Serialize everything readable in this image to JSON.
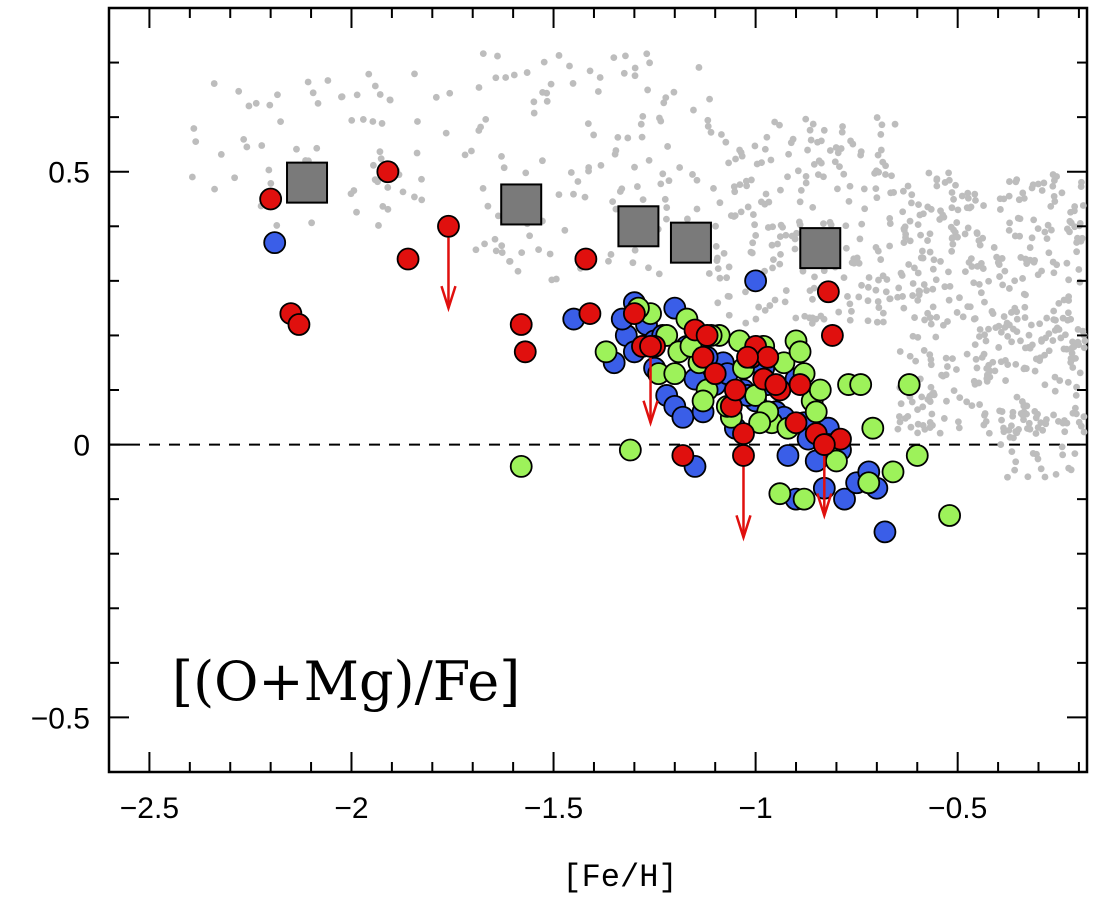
{
  "chart_data": {
    "type": "scatter",
    "xlabel": "[Fe/H]",
    "ylabel": "",
    "annotation": "[(O+Mg)/Fe]",
    "xlim": [
      -2.6,
      -0.18
    ],
    "ylim": [
      -0.6,
      0.8
    ],
    "x_ticks": [
      -2.5,
      -2,
      -1.5,
      -1,
      -0.5
    ],
    "x_tick_labels": [
      "−2.5",
      "−2",
      "−1.5",
      "−1",
      "−0.5"
    ],
    "y_ticks": [
      -0.5,
      0,
      0.5
    ],
    "y_tick_labels": [
      "−0.5",
      "0",
      "0.5"
    ],
    "reference_line": {
      "y": 0,
      "style": "dashed"
    },
    "colors": {
      "background_field": "#bdbdbd",
      "blue": "#3a5ee8",
      "green": "#9df25a",
      "red": "#e0100e",
      "squares": "#7a7a7a",
      "upper_limit_arrow": "#e0100e"
    },
    "series": [
      {
        "marker": "small-dot",
        "color": "#bdbdbd",
        "clouds": [
          {
            "count": 70,
            "x": [
              -2.4,
              -1.7
            ],
            "y": [
              0.4,
              0.68
            ]
          },
          {
            "count": 120,
            "x": [
              -1.7,
              -1.1
            ],
            "y": [
              0.3,
              0.72
            ]
          },
          {
            "count": 200,
            "x": [
              -1.1,
              -0.65
            ],
            "y": [
              0.22,
              0.6
            ]
          },
          {
            "count": 420,
            "x": [
              -0.65,
              -0.18
            ],
            "y": [
              0.02,
              0.5
            ]
          },
          {
            "count": 30,
            "x": [
              -0.4,
              -0.18
            ],
            "y": [
              -0.06,
              0.06
            ]
          }
        ]
      },
      {
        "marker": "circle",
        "color": "#3a5ee8",
        "x": [
          -2.19,
          -1.45,
          -1.35,
          -1.32,
          -1.3,
          -1.28,
          -1.27,
          -1.25,
          -1.22,
          -1.2,
          -1.18,
          -1.15,
          -1.13,
          -1.1,
          -1.08,
          -1.05,
          -1.03,
          -1.0,
          -0.98,
          -0.95,
          -0.92,
          -0.9,
          -0.88,
          -0.85,
          -0.83,
          -0.8,
          -0.78,
          -0.75,
          -0.72,
          -0.7,
          -0.68,
          -1.15,
          -1.0,
          -1.2,
          -1.25,
          -1.3,
          -1.33,
          -1.23,
          -1.17,
          -1.12,
          -1.07,
          -1.02,
          -0.97,
          -0.93,
          -0.87,
          -0.82,
          -0.79,
          -0.9
        ],
        "y": [
          0.37,
          0.23,
          0.15,
          0.2,
          0.17,
          0.24,
          0.22,
          0.14,
          0.09,
          0.07,
          0.05,
          0.12,
          0.06,
          0.11,
          0.15,
          0.03,
          0.1,
          0.08,
          0.14,
          0.06,
          -0.02,
          -0.1,
          0.04,
          -0.03,
          -0.08,
          -0.02,
          -0.1,
          -0.07,
          -0.05,
          -0.08,
          -0.16,
          -0.04,
          0.3,
          0.25,
          0.19,
          0.26,
          0.23,
          0.2,
          0.18,
          0.16,
          0.13,
          0.09,
          0.11,
          0.05,
          0.01,
          0.03,
          -0.01,
          0.12
        ]
      },
      {
        "marker": "circle",
        "color": "#9df25a",
        "x": [
          -1.58,
          -1.37,
          -1.31,
          -1.26,
          -1.22,
          -1.19,
          -1.17,
          -1.14,
          -1.12,
          -1.09,
          -1.06,
          -1.03,
          -1.0,
          -0.98,
          -0.96,
          -0.94,
          -0.92,
          -0.9,
          -0.88,
          -0.86,
          -0.84,
          -0.82,
          -0.8,
          -0.77,
          -0.74,
          -0.71,
          -0.66,
          -0.62,
          -0.6,
          -0.52,
          -1.29,
          -1.24,
          -1.16,
          -1.11,
          -1.07,
          -0.97,
          -0.93,
          -0.89,
          -0.85,
          -0.72,
          -1.2,
          -1.13,
          -1.04,
          -0.99,
          -0.88
        ],
        "y": [
          -0.04,
          0.17,
          -0.01,
          0.24,
          0.2,
          0.17,
          0.23,
          0.15,
          0.1,
          0.2,
          0.05,
          0.14,
          0.09,
          0.18,
          0.04,
          -0.09,
          0.03,
          0.19,
          0.13,
          0.08,
          0.1,
          0.0,
          -0.03,
          0.11,
          0.11,
          0.03,
          -0.05,
          0.11,
          -0.02,
          -0.13,
          0.25,
          0.13,
          0.18,
          0.2,
          0.07,
          0.06,
          0.15,
          0.17,
          0.06,
          -0.07,
          0.13,
          0.08,
          0.19,
          0.04,
          -0.1
        ]
      },
      {
        "marker": "circle",
        "color": "#e0100e",
        "x": [
          -2.2,
          -2.15,
          -2.13,
          -1.91,
          -1.86,
          -1.58,
          -1.57,
          -1.41,
          -1.42,
          -1.3,
          -1.28,
          -1.25,
          -1.18,
          -1.15,
          -1.13,
          -1.1,
          -1.06,
          -1.03,
          -1.01,
          -1.0,
          -0.98,
          -0.97,
          -0.94,
          -0.9,
          -0.89,
          -0.85,
          -0.82,
          -0.81,
          -0.79,
          -1.12,
          -1.05,
          -1.02,
          -0.95
        ],
        "y": [
          0.45,
          0.24,
          0.22,
          0.5,
          0.34,
          0.22,
          0.17,
          0.24,
          0.34,
          0.24,
          0.18,
          0.18,
          -0.02,
          0.21,
          0.16,
          0.13,
          0.07,
          0.02,
          0.16,
          0.18,
          0.12,
          0.16,
          0.1,
          0.04,
          0.11,
          0.02,
          0.28,
          0.2,
          0.01,
          0.2,
          0.1,
          0.16,
          0.11
        ]
      },
      {
        "marker": "square",
        "color": "#7a7a7a",
        "x": [
          -2.11,
          -1.58,
          -1.29,
          -1.16,
          -0.84
        ],
        "y": [
          0.48,
          0.44,
          0.4,
          0.37,
          0.36
        ]
      },
      {
        "marker": "upper-limit-arrow",
        "color": "#e0100e",
        "x": [
          -1.76,
          -1.26,
          -1.03,
          -0.83
        ],
        "y": [
          0.4,
          0.18,
          -0.02,
          0.0
        ],
        "y_end": [
          0.25,
          0.04,
          -0.17,
          -0.13
        ]
      }
    ]
  }
}
